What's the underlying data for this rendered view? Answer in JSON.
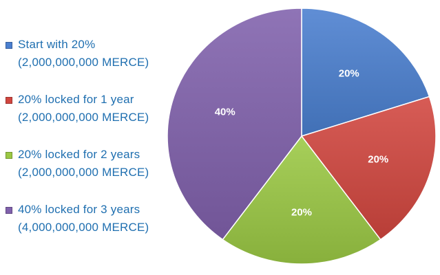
{
  "chart_data": {
    "type": "pie",
    "title": "",
    "legend_position": "left",
    "slices": [
      {
        "legend_line1": "Start with 20%",
        "legend_line2": "(2,000,000,000 MERCE)",
        "value": 20,
        "label": "20%",
        "color": "#4a7fcf"
      },
      {
        "legend_line1": "20% locked for 1 year",
        "legend_line2": "(2,000,000,000 MERCE)",
        "value": 20,
        "label": "20%",
        "color": "#d1463f"
      },
      {
        "legend_line1": "20% locked for 2 years",
        "legend_line2": "(2,000,000,000 MERCE)",
        "value": 20,
        "label": "20%",
        "color": "#9bc844"
      },
      {
        "legend_line1": "40% locked for 3 years",
        "legend_line2": "(4,000,000,000 MERCE)",
        "value": 40,
        "label": "40%",
        "color": "#8061ac"
      }
    ]
  }
}
